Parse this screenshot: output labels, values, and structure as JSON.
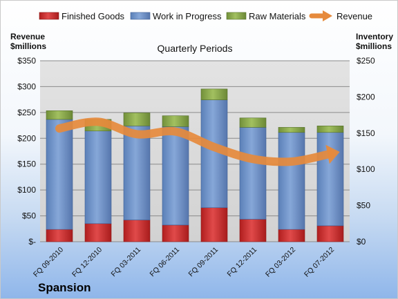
{
  "chart_data": {
    "type": "bar",
    "subtitle": "Quarterly Periods",
    "company": "Spansion",
    "categories": [
      "FQ 09-2010",
      "FQ 12-2010",
      "FQ 03-2011",
      "FQ 06-2011",
      "FQ 09-2011",
      "FQ 12-2011",
      "FQ 03-2012",
      "FQ 07-2012"
    ],
    "stacked": true,
    "series": [
      {
        "name": "Finished Goods",
        "axis": "right",
        "color": "#cc2a2a",
        "values": [
          17,
          25,
          30,
          23,
          47,
          31,
          17,
          22
        ]
      },
      {
        "name": "Work in Progress",
        "axis": "right",
        "color": "#6f93c8",
        "values": [
          152,
          128,
          130,
          136,
          149,
          127,
          134,
          129
        ]
      },
      {
        "name": "Raw Materials",
        "axis": "right",
        "color": "#8aa848",
        "values": [
          12,
          16,
          18,
          15,
          15,
          13,
          7,
          9
        ]
      },
      {
        "name": "Revenue",
        "axis": "left",
        "type": "line",
        "color": "#e68a3c",
        "values": [
          219,
          232,
          208,
          213,
          183,
          160,
          155,
          170
        ]
      }
    ],
    "left_axis": {
      "label_line1": "Revenue",
      "label_line2": "$millions",
      "min": 0,
      "max": 350,
      "step": 50,
      "tick_labels": [
        "$-",
        "$50",
        "$100",
        "$150",
        "$200",
        "$250",
        "$300",
        "$350"
      ]
    },
    "right_axis": {
      "label_line1": "Inventory",
      "label_line2": "$millions",
      "min": 0,
      "max": 250,
      "step": 50,
      "tick_labels": [
        "$0",
        "$50",
        "$100",
        "$150",
        "$200",
        "$250"
      ]
    },
    "grid": true,
    "legend": "top"
  }
}
